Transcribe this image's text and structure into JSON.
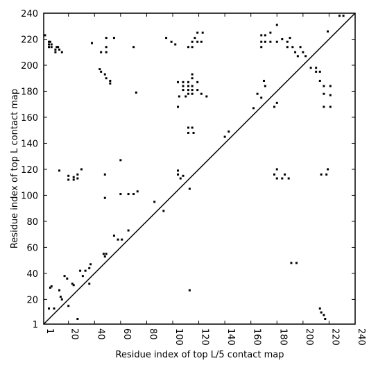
{
  "chart_data": {
    "type": "scatter",
    "xlabel": "Residue index of top L/5 contact map",
    "ylabel": "Residue index of top L contact map",
    "color": "#000000",
    "xlim": [
      1,
      240
    ],
    "ylim": [
      1,
      240
    ],
    "xticks": [
      1,
      20,
      40,
      60,
      80,
      100,
      120,
      140,
      160,
      180,
      200,
      220,
      240
    ],
    "yticks": [
      1,
      20,
      40,
      60,
      80,
      100,
      120,
      140,
      160,
      180,
      200,
      220,
      240
    ],
    "x": [
      2,
      5,
      6,
      5,
      7,
      5,
      7,
      10,
      11,
      12,
      13,
      15,
      10,
      38,
      45,
      49,
      49,
      49,
      55,
      70,
      95,
      99,
      102,
      112,
      115,
      115,
      117,
      119,
      119,
      122,
      123,
      44,
      45,
      48,
      49,
      52,
      52,
      104,
      108,
      108,
      108,
      112,
      112,
      112,
      112,
      115,
      115,
      115,
      115,
      115,
      119,
      119,
      122,
      105,
      110,
      126,
      104,
      72,
      112,
      115,
      112,
      116,
      140,
      143,
      168,
      168,
      168,
      171,
      171,
      175,
      175,
      180,
      180,
      184,
      188,
      188,
      190,
      192,
      194,
      196,
      198,
      200,
      202,
      162,
      165,
      168,
      170,
      171,
      178,
      180,
      206,
      210,
      210,
      213,
      213,
      216,
      216,
      216,
      221,
      221,
      221,
      219,
      228,
      231,
      13,
      20,
      20,
      24,
      24,
      27,
      27,
      30,
      48,
      48,
      60,
      60,
      66,
      70,
      73,
      104,
      104,
      106,
      108,
      113,
      86,
      93,
      55,
      58,
      61,
      66,
      47,
      48,
      49,
      5,
      9,
      6,
      7,
      13,
      14,
      15,
      17,
      19,
      20,
      23,
      24,
      27,
      29,
      31,
      33,
      36,
      37,
      36,
      178,
      180,
      180,
      184,
      186,
      189,
      214,
      218,
      219,
      191,
      195,
      113,
      213,
      214,
      216,
      217
    ],
    "values": [
      223,
      218,
      218,
      216,
      216,
      214,
      214,
      212,
      214,
      214,
      212,
      210,
      210,
      217,
      210,
      210,
      214,
      221,
      221,
      214,
      221,
      218,
      216,
      214,
      214,
      218,
      221,
      218,
      225,
      218,
      225,
      197,
      195,
      193,
      190,
      188,
      186,
      187,
      187,
      184,
      181,
      187,
      184,
      181,
      178,
      184,
      181,
      178,
      193,
      190,
      187,
      181,
      178,
      176,
      176,
      176,
      168,
      179,
      152,
      152,
      148,
      148,
      145,
      149,
      223,
      218,
      214,
      223,
      218,
      225,
      218,
      231,
      218,
      220,
      218,
      214,
      221,
      214,
      210,
      207,
      214,
      210,
      207,
      167,
      178,
      175,
      188,
      184,
      168,
      171,
      198,
      198,
      195,
      195,
      188,
      184,
      178,
      168,
      184,
      177,
      168,
      226,
      238,
      238,
      119,
      115,
      112,
      114,
      112,
      116,
      113,
      120,
      116,
      98,
      127,
      101,
      101,
      101,
      103,
      119,
      116,
      113,
      115,
      105,
      95,
      88,
      69,
      66,
      66,
      73,
      55,
      53,
      55,
      13,
      13,
      29,
      30,
      27,
      22,
      20,
      38,
      36,
      15,
      32,
      31,
      5,
      42,
      38,
      42,
      44,
      47,
      32,
      116,
      120,
      113,
      113,
      116,
      113,
      116,
      116,
      120,
      48,
      48,
      27,
      13,
      10,
      8,
      5
    ]
  }
}
